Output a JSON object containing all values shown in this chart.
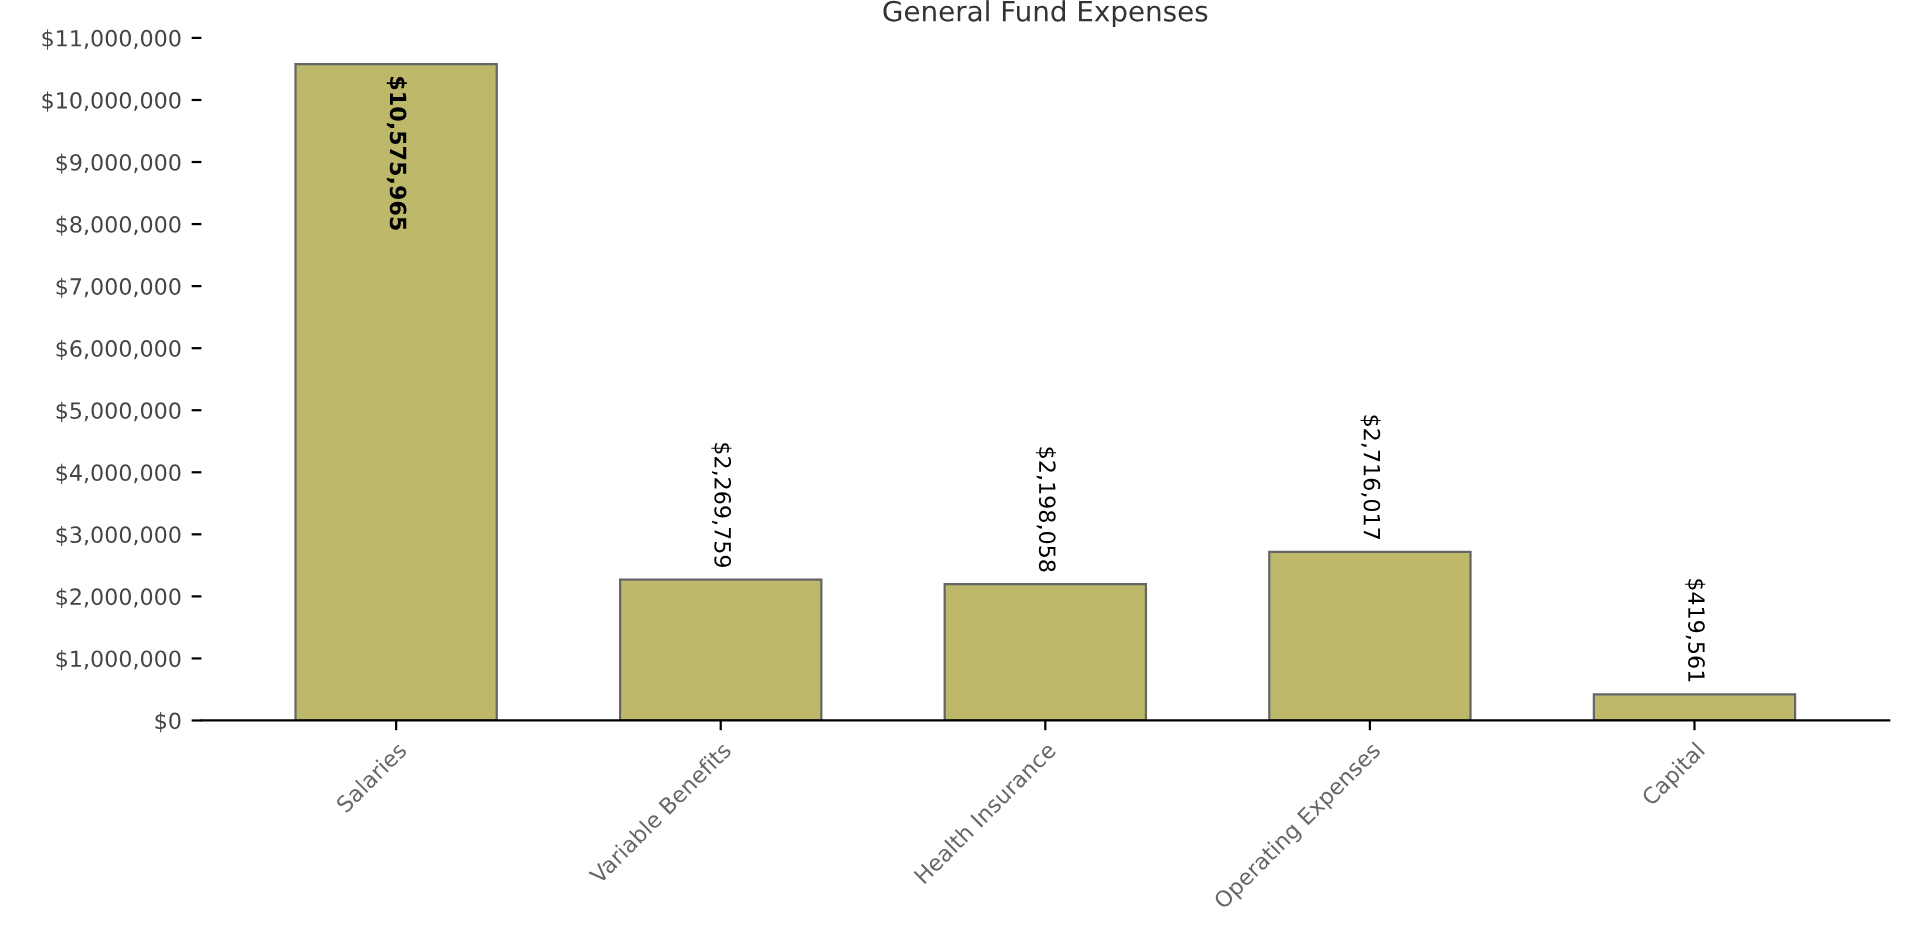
{
  "chart_data": {
    "type": "bar",
    "title": "General Fund Expenses",
    "categories": [
      "Salaries",
      "Variable Benefits",
      "Health Insurance",
      "Operating Expenses",
      "Capital"
    ],
    "values": [
      10575965,
      2269759,
      2198058,
      2716017,
      419561
    ],
    "value_labels": [
      "$10,575,965",
      "$2,269,759",
      "$2,198,058",
      "$2,716,017",
      "$419,561"
    ],
    "color": "#bdb86a",
    "ylim": [
      0,
      11000000
    ],
    "yticks": [
      {
        "value": 0,
        "label": "$0"
      },
      {
        "value": 1000000,
        "label": "$1,000,000"
      },
      {
        "value": 2000000,
        "label": "$2,000,000"
      },
      {
        "value": 3000000,
        "label": "$3,000,000"
      },
      {
        "value": 4000000,
        "label": "$4,000,000"
      },
      {
        "value": 5000000,
        "label": "$5,000,000"
      },
      {
        "value": 6000000,
        "label": "$6,000,000"
      },
      {
        "value": 7000000,
        "label": "$7,000,000"
      },
      {
        "value": 8000000,
        "label": "$8,000,000"
      },
      {
        "value": 9000000,
        "label": "$9,000,000"
      },
      {
        "value": 10000000,
        "label": "$10,000,000"
      },
      {
        "value": 11000000,
        "label": "$11,000,000"
      }
    ],
    "grid": false
  }
}
